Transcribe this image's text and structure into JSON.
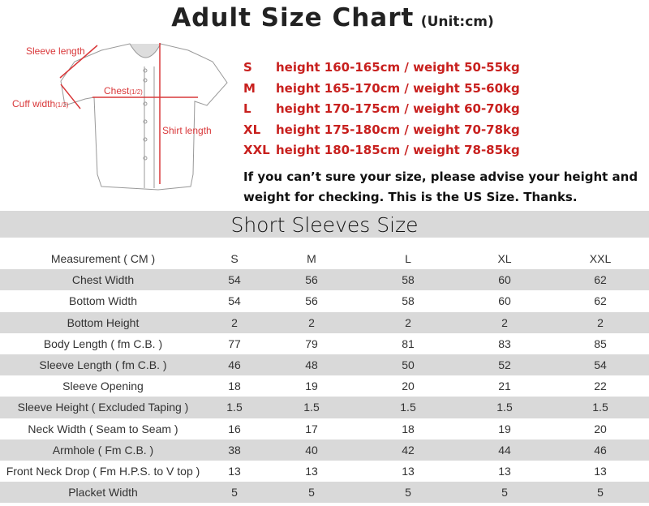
{
  "title": {
    "main": "Adult Size Chart",
    "unit": "(Unit:cm)"
  },
  "diagram": {
    "sleeve_length": "Sleeve length",
    "chest": "Chest",
    "chest_half": "(1/2)",
    "cuff_width": "Cuff width",
    "cuff_half": "(1/2)",
    "shirt_length": "Shirt length",
    "accent_color": "#d9383a"
  },
  "size_guide": [
    {
      "size": "S",
      "desc": "height 160-165cm / weight 50-55kg"
    },
    {
      "size": "M",
      "desc": "height 165-170cm / weight 55-60kg"
    },
    {
      "size": "L",
      "desc": "height 170-175cm / weight 60-70kg"
    },
    {
      "size": "XL",
      "desc": "height 175-180cm / weight 70-78kg"
    },
    {
      "size": "XXL",
      "desc": "height 180-185cm / weight 78-85kg"
    }
  ],
  "note": "If you can’t sure your size, please advise your height and weight for checking.  This is the US Size. Thanks.",
  "table": {
    "title": "Short Sleeves Size",
    "header": [
      "Measurement ( CM )",
      "S",
      "M",
      "L",
      "XL",
      "XXL"
    ],
    "rows": [
      [
        "Chest Width",
        "54",
        "56",
        "58",
        "60",
        "62"
      ],
      [
        "Bottom Width",
        "54",
        "56",
        "58",
        "60",
        "62"
      ],
      [
        "Bottom Height",
        "2",
        "2",
        "2",
        "2",
        "2"
      ],
      [
        "Body Length ( fm C.B. )",
        "77",
        "79",
        "81",
        "83",
        "85"
      ],
      [
        "Sleeve Length ( fm C.B. )",
        "46",
        "48",
        "50",
        "52",
        "54"
      ],
      [
        "Sleeve Opening",
        "18",
        "19",
        "20",
        "21",
        "22"
      ],
      [
        "Sleeve Height ( Excluded Taping )",
        "1.5",
        "1.5",
        "1.5",
        "1.5",
        "1.5"
      ],
      [
        "Neck Width ( Seam to Seam )",
        "16",
        "17",
        "18",
        "19",
        "20"
      ],
      [
        "Armhole ( Fm C.B. )",
        "38",
        "40",
        "42",
        "44",
        "46"
      ],
      [
        "Front Neck Drop ( Fm H.P.S. to V top )",
        "13",
        "13",
        "13",
        "13",
        "13"
      ],
      [
        "Placket Width",
        "5",
        "5",
        "5",
        "5",
        "5"
      ]
    ]
  }
}
